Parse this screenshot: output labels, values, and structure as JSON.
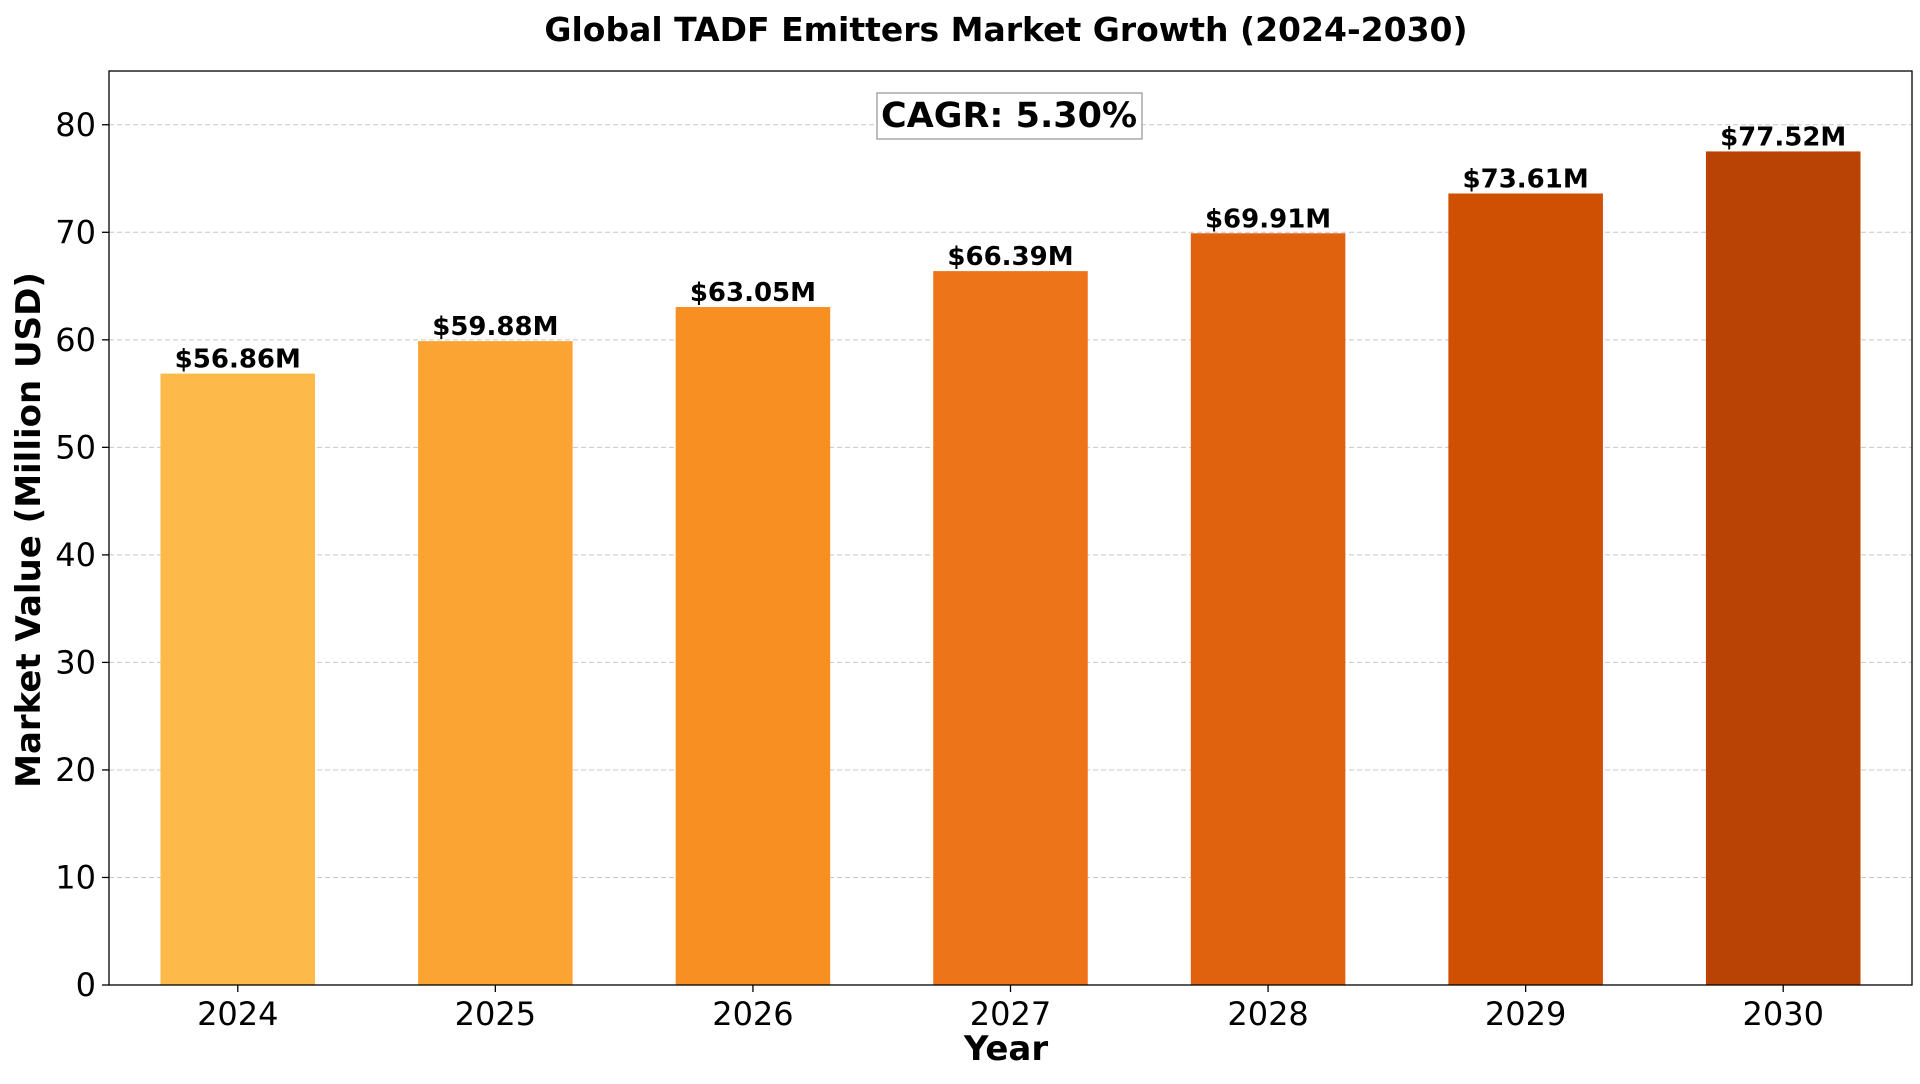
{
  "chart_data": {
    "type": "bar",
    "title": "Global TADF Emitters Market Growth (2024-2030)",
    "xlabel": "Year",
    "ylabel": "Market Value (Million USD)",
    "categories": [
      "2024",
      "2025",
      "2026",
      "2027",
      "2028",
      "2029",
      "2030"
    ],
    "values": [
      56.86,
      59.88,
      63.05,
      66.39,
      69.91,
      73.61,
      77.52
    ],
    "value_labels": [
      "$56.86M",
      "$59.88M",
      "$63.05M",
      "$66.39M",
      "$69.91M",
      "$73.61M",
      "$77.52M"
    ],
    "colors": [
      "#fdb94a",
      "#fba433",
      "#f78f23",
      "#ee7419",
      "#e0620f",
      "#d05003",
      "#b94304"
    ],
    "ylim": [
      0,
      85
    ],
    "yticks": [
      0,
      10,
      20,
      30,
      40,
      50,
      60,
      70,
      80
    ],
    "grid": "y-dashed",
    "annotation": "CAGR: 5.30%"
  }
}
